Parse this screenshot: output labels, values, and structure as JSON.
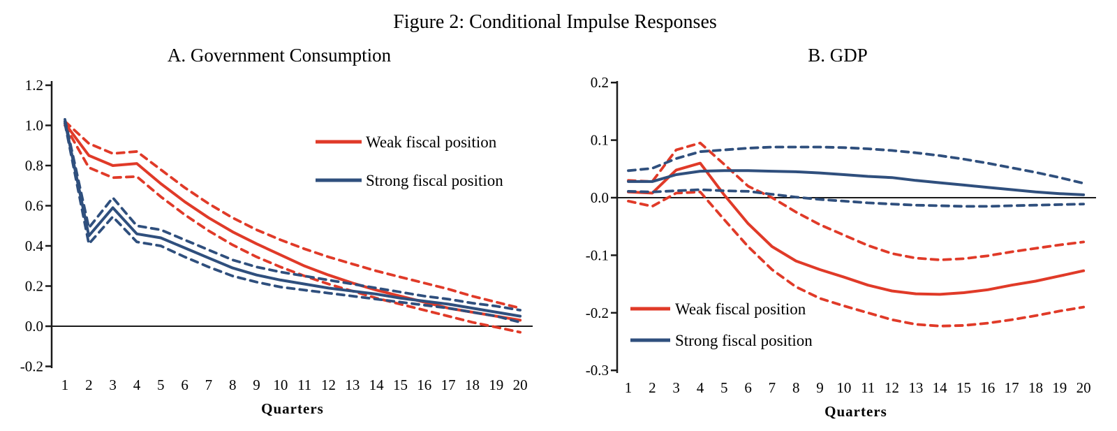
{
  "figure": {
    "title": "Figure 2: Conditional Impulse Responses"
  },
  "colors": {
    "weak": "#e03a28",
    "strong": "#2f4f7d",
    "axis": "#1a1a1a",
    "text": "#000000"
  },
  "chart_data": [
    {
      "type": "line",
      "title": "A. Government Consumption",
      "xlabel": "Quarters",
      "x": [
        1,
        2,
        3,
        4,
        5,
        6,
        7,
        8,
        9,
        10,
        11,
        12,
        13,
        14,
        15,
        16,
        17,
        18,
        19,
        20
      ],
      "ylim": [
        -0.2,
        1.2
      ],
      "ytick_labels": [
        "1.2",
        "1.0",
        "0.8",
        "0.6",
        "0.4",
        "0.2",
        "0.0",
        "-0.2"
      ],
      "ytick_values": [
        1.2,
        1.0,
        0.8,
        0.6,
        0.4,
        0.2,
        0.0,
        -0.2
      ],
      "grid": false,
      "legend_position": "upper-right-inside",
      "legend": [
        {
          "label": "Weak fiscal position",
          "color": "#e03a28"
        },
        {
          "label": "Strong fiscal position",
          "color": "#2f4f7d"
        }
      ],
      "series": [
        {
          "name": "Weak fiscal position",
          "style": "solid",
          "color": "#e03a28",
          "values": [
            1.01,
            0.85,
            0.8,
            0.81,
            0.71,
            0.62,
            0.54,
            0.47,
            0.41,
            0.355,
            0.3,
            0.255,
            0.215,
            0.18,
            0.15,
            0.12,
            0.09,
            0.07,
            0.05,
            0.03
          ]
        },
        {
          "name": "Weak fiscal position upper band",
          "style": "dashed",
          "color": "#e03a28",
          "values": [
            1.02,
            0.91,
            0.86,
            0.87,
            0.78,
            0.69,
            0.61,
            0.54,
            0.48,
            0.43,
            0.385,
            0.345,
            0.31,
            0.275,
            0.245,
            0.215,
            0.185,
            0.15,
            0.12,
            0.09
          ]
        },
        {
          "name": "Weak fiscal position lower band",
          "style": "dashed",
          "color": "#e03a28",
          "values": [
            1.0,
            0.79,
            0.74,
            0.745,
            0.645,
            0.555,
            0.475,
            0.405,
            0.345,
            0.295,
            0.25,
            0.21,
            0.175,
            0.14,
            0.11,
            0.08,
            0.05,
            0.02,
            -0.005,
            -0.03
          ]
        },
        {
          "name": "Strong fiscal position",
          "style": "solid",
          "color": "#2f4f7d",
          "values": [
            1.02,
            0.45,
            0.59,
            0.46,
            0.44,
            0.39,
            0.34,
            0.29,
            0.255,
            0.23,
            0.21,
            0.19,
            0.175,
            0.16,
            0.14,
            0.125,
            0.11,
            0.09,
            0.07,
            0.05
          ]
        },
        {
          "name": "Strong fiscal position upper band",
          "style": "dashed",
          "color": "#2f4f7d",
          "values": [
            1.03,
            0.49,
            0.64,
            0.5,
            0.48,
            0.43,
            0.38,
            0.33,
            0.295,
            0.27,
            0.25,
            0.23,
            0.21,
            0.19,
            0.17,
            0.15,
            0.135,
            0.115,
            0.1,
            0.08
          ]
        },
        {
          "name": "Strong fiscal position lower band",
          "style": "dashed",
          "color": "#2f4f7d",
          "values": [
            1.01,
            0.41,
            0.545,
            0.42,
            0.4,
            0.345,
            0.295,
            0.25,
            0.22,
            0.195,
            0.18,
            0.165,
            0.15,
            0.135,
            0.12,
            0.105,
            0.09,
            0.07,
            0.05,
            0.02
          ]
        }
      ]
    },
    {
      "type": "line",
      "title": "B. GDP",
      "xlabel": "Quarters",
      "x": [
        1,
        2,
        3,
        4,
        5,
        6,
        7,
        8,
        9,
        10,
        11,
        12,
        13,
        14,
        15,
        16,
        17,
        18,
        19,
        20
      ],
      "ylim": [
        -0.3,
        0.2
      ],
      "ytick_labels": [
        "0.2",
        "0.1",
        "0.0",
        "-0.1",
        "-0.2",
        "-0.3"
      ],
      "ytick_values": [
        0.2,
        0.1,
        0.0,
        -0.1,
        -0.2,
        -0.3
      ],
      "grid": false,
      "legend_position": "lower-left-inside",
      "legend": [
        {
          "label": "Weak fiscal position",
          "color": "#e03a28"
        },
        {
          "label": "Strong fiscal position",
          "color": "#2f4f7d"
        }
      ],
      "series": [
        {
          "name": "Weak fiscal position",
          "style": "solid",
          "color": "#e03a28",
          "values": [
            0.01,
            0.008,
            0.048,
            0.06,
            0.005,
            -0.045,
            -0.085,
            -0.11,
            -0.125,
            -0.138,
            -0.152,
            -0.162,
            -0.167,
            -0.168,
            -0.165,
            -0.16,
            -0.152,
            -0.145,
            -0.136,
            -0.127
          ]
        },
        {
          "name": "Weak fiscal position upper band",
          "style": "dashed",
          "color": "#e03a28",
          "values": [
            0.03,
            0.028,
            0.083,
            0.095,
            0.058,
            0.02,
            0.0,
            -0.025,
            -0.047,
            -0.065,
            -0.083,
            -0.097,
            -0.105,
            -0.108,
            -0.106,
            -0.101,
            -0.094,
            -0.088,
            -0.082,
            -0.077
          ]
        },
        {
          "name": "Weak fiscal position lower band",
          "style": "dashed",
          "color": "#e03a28",
          "values": [
            -0.006,
            -0.015,
            0.008,
            0.01,
            -0.038,
            -0.085,
            -0.125,
            -0.155,
            -0.175,
            -0.188,
            -0.2,
            -0.212,
            -0.22,
            -0.223,
            -0.222,
            -0.218,
            -0.212,
            -0.205,
            -0.197,
            -0.19
          ]
        },
        {
          "name": "Strong fiscal position",
          "style": "solid",
          "color": "#2f4f7d",
          "values": [
            0.028,
            0.028,
            0.04,
            0.046,
            0.047,
            0.047,
            0.046,
            0.045,
            0.043,
            0.04,
            0.037,
            0.035,
            0.03,
            0.026,
            0.022,
            0.018,
            0.014,
            0.01,
            0.007,
            0.005
          ]
        },
        {
          "name": "Strong fiscal position upper band",
          "style": "dashed",
          "color": "#2f4f7d",
          "values": [
            0.047,
            0.051,
            0.068,
            0.08,
            0.083,
            0.086,
            0.088,
            0.088,
            0.088,
            0.087,
            0.085,
            0.082,
            0.078,
            0.073,
            0.067,
            0.06,
            0.052,
            0.044,
            0.035,
            0.025
          ]
        },
        {
          "name": "Strong fiscal position lower band",
          "style": "dashed",
          "color": "#2f4f7d",
          "values": [
            0.011,
            0.01,
            0.012,
            0.014,
            0.012,
            0.011,
            0.006,
            0.001,
            -0.003,
            -0.006,
            -0.009,
            -0.011,
            -0.013,
            -0.014,
            -0.015,
            -0.015,
            -0.014,
            -0.013,
            -0.012,
            -0.011
          ]
        }
      ]
    }
  ]
}
